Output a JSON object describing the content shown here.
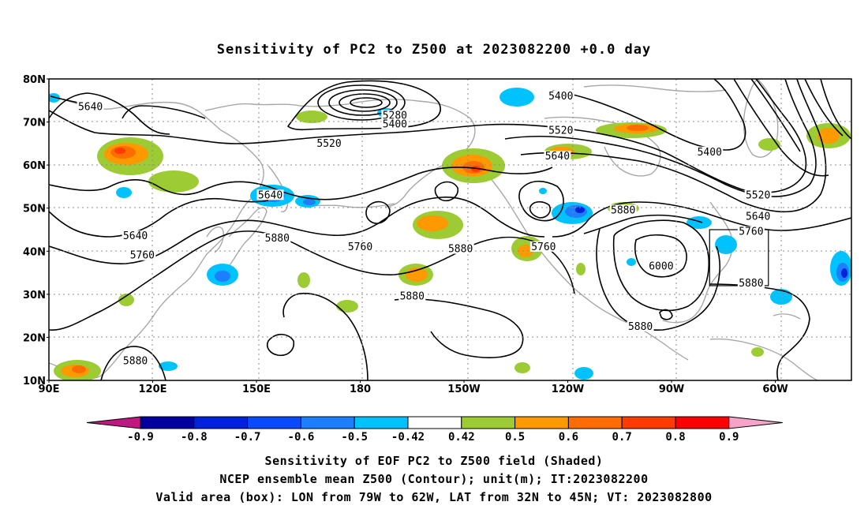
{
  "title": "Sensitivity of PC2 to Z500 at 2023082200 +0.0 day",
  "axes": {
    "lat_ticks": [
      "80N",
      "70N",
      "60N",
      "50N",
      "40N",
      "30N",
      "20N",
      "10N"
    ],
    "lon_ticks": [
      "90E",
      "120E",
      "150E",
      "180",
      "150W",
      "120W",
      "90W",
      "60W"
    ]
  },
  "contour_labels": [
    {
      "text": "5640",
      "lon": 102,
      "lat": 73.5
    },
    {
      "text": "5280",
      "lon": -170,
      "lat": 71.5
    },
    {
      "text": "5400",
      "lon": -170,
      "lat": 69.5
    },
    {
      "text": "5520",
      "lon": 171,
      "lat": 65
    },
    {
      "text": "5400",
      "lon": -122,
      "lat": 76
    },
    {
      "text": "5520",
      "lon": -122,
      "lat": 68
    },
    {
      "text": "5640",
      "lon": -123,
      "lat": 62
    },
    {
      "text": "5400",
      "lon": -79,
      "lat": 63
    },
    {
      "text": "5640",
      "lon": 154,
      "lat": 53
    },
    {
      "text": "5520",
      "lon": -65,
      "lat": 53
    },
    {
      "text": "5640",
      "lon": -65,
      "lat": 48
    },
    {
      "text": "5880",
      "lon": -104,
      "lat": 49.5
    },
    {
      "text": "5760",
      "lon": -67,
      "lat": 44.5
    },
    {
      "text": "5640",
      "lon": 115,
      "lat": 43.5
    },
    {
      "text": "5880",
      "lon": 156,
      "lat": 43
    },
    {
      "text": "5760",
      "lon": 180,
      "lat": 41
    },
    {
      "text": "5880",
      "lon": -151,
      "lat": 40.5
    },
    {
      "text": "5760",
      "lon": -127,
      "lat": 41
    },
    {
      "text": "5760",
      "lon": 117,
      "lat": 39
    },
    {
      "text": "6000",
      "lon": -93,
      "lat": 36.5
    },
    {
      "text": "5880",
      "lon": -67,
      "lat": 32.5
    },
    {
      "text": "5880",
      "lon": -165,
      "lat": 29.5
    },
    {
      "text": "5880",
      "lon": -99,
      "lat": 22.5
    },
    {
      "text": "5880",
      "lon": 115,
      "lat": 14.5
    }
  ],
  "colorbar": {
    "labels": [
      "-0.9",
      "-0.8",
      "-0.7",
      "-0.6",
      "-0.5",
      "-0.42",
      "0.42",
      "0.5",
      "0.6",
      "0.7",
      "0.8",
      "0.9"
    ],
    "colors": [
      "#0000a0",
      "#0022dd",
      "#0a4aff",
      "#1d7fff",
      "#00c2ff",
      "#ffffff",
      "#9ccb33",
      "#ff9900",
      "#ff6d00",
      "#ff3b00",
      "#ff0000"
    ],
    "low_end_color": "#c01780",
    "high_end_color": "#f7a3c9"
  },
  "caption": [
    "Sensitivity of EOF PC2 to Z500 field (Shaded)",
    "NCEP ensemble mean Z500 (Contour); unit(m); IT:2023082200",
    "Valid area (box): LON from 79W to 62W, LAT from 32N to 45N; VT: 2023082800"
  ],
  "valid_box": {
    "lon_w": -79,
    "lon_e": -62,
    "lat_s": 32,
    "lat_n": 45
  },
  "map_extent": {
    "lon_min": 90,
    "lon_max": 322,
    "lat_min": 10,
    "lat_max": 80
  }
}
